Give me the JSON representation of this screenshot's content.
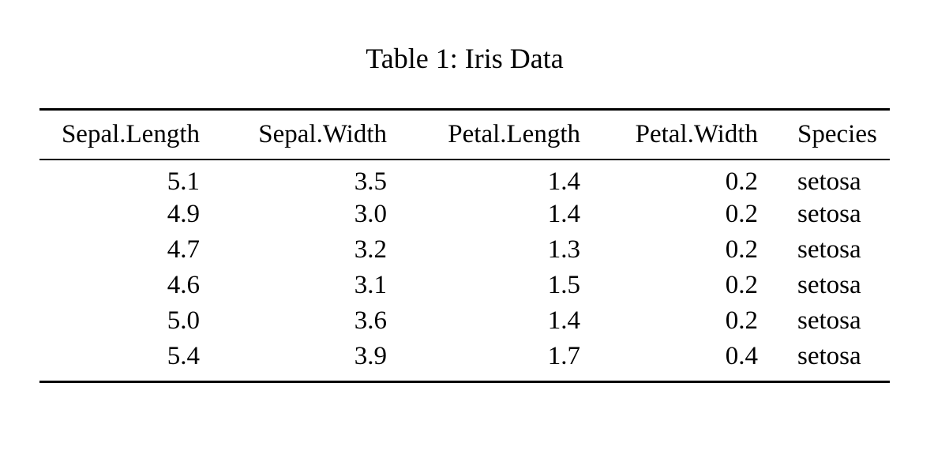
{
  "caption": "Table 1: Iris Data",
  "table": {
    "headers": [
      "Sepal.Length",
      "Sepal.Width",
      "Petal.Length",
      "Petal.Width",
      "Species"
    ],
    "rows": [
      [
        "5.1",
        "3.5",
        "1.4",
        "0.2",
        "setosa"
      ],
      [
        "4.9",
        "3.0",
        "1.4",
        "0.2",
        "setosa"
      ],
      [
        "4.7",
        "3.2",
        "1.3",
        "0.2",
        "setosa"
      ],
      [
        "4.6",
        "3.1",
        "1.5",
        "0.2",
        "setosa"
      ],
      [
        "5.0",
        "3.6",
        "1.4",
        "0.2",
        "setosa"
      ],
      [
        "5.4",
        "3.9",
        "1.7",
        "0.4",
        "setosa"
      ]
    ]
  },
  "colors": {
    "text": "#000000",
    "background": "#ffffff",
    "rule": "#000000"
  }
}
